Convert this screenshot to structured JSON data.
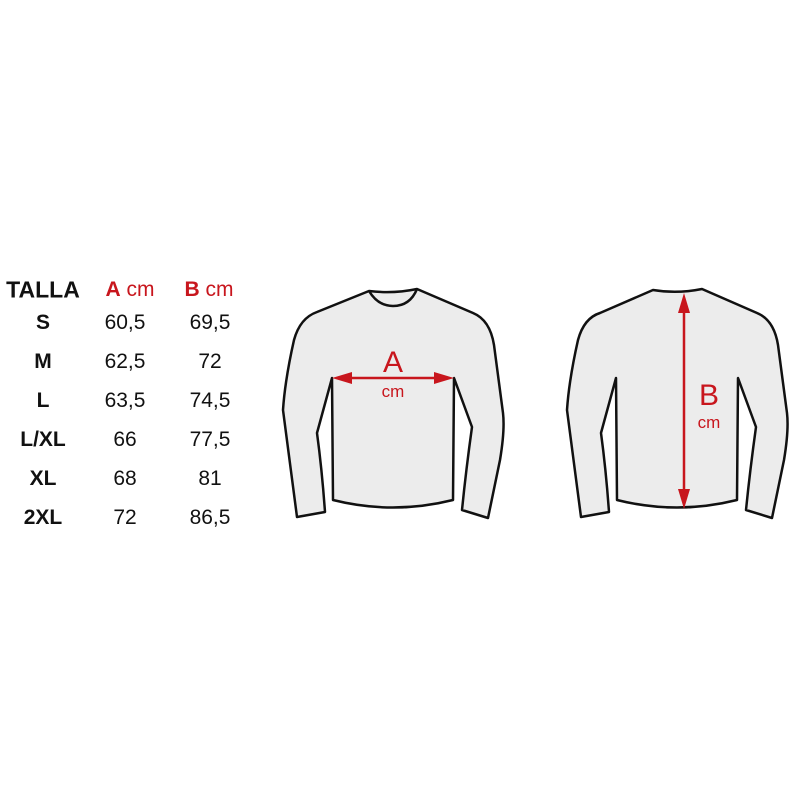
{
  "table": {
    "headers": {
      "size": "TALLA",
      "a_letter": "A",
      "a_unit": "cm",
      "b_letter": "B",
      "b_unit": "cm"
    },
    "rows": [
      {
        "size": "S",
        "a": "60,5",
        "b": "69,5"
      },
      {
        "size": "M",
        "a": "62,5",
        "b": "72"
      },
      {
        "size": "L",
        "a": "63,5",
        "b": "74,5"
      },
      {
        "size": "L/XL",
        "a": "66",
        "b": "77,5"
      },
      {
        "size": "XL",
        "a": "68",
        "b": "81"
      },
      {
        "size": "2XL",
        "a": "72",
        "b": "86,5"
      }
    ]
  },
  "diagram": {
    "front_label": "A",
    "front_unit": "cm",
    "back_label": "B",
    "back_unit": "cm",
    "accent_color": "#c8161d",
    "shirt_fill": "#ececec"
  }
}
